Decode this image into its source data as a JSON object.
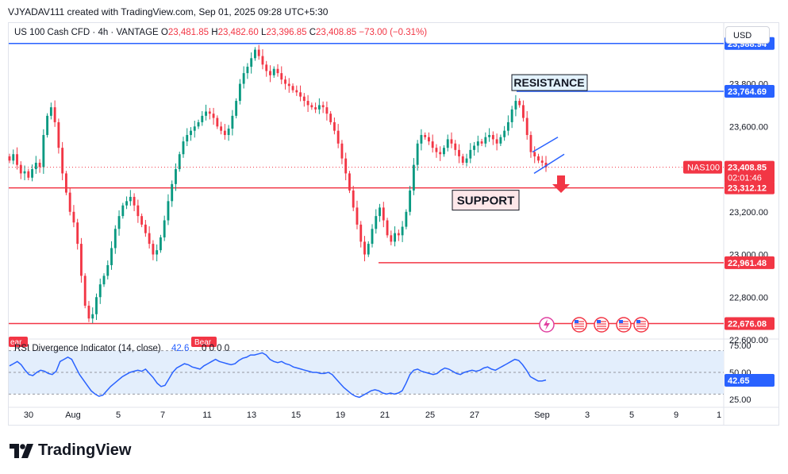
{
  "credit": "VJYADAV111 created with TradingView.com, Sep 01, 2025 09:28 UTC+5:30",
  "legend": {
    "title": "US 100 Cash CFD · 4h · VANTAGE",
    "o_label": "O",
    "o": "23,481.85",
    "h_label": "H",
    "h": "23,482.60",
    "l_label": "L",
    "l": "23,396.85",
    "c_label": "C",
    "c": "23,408.85",
    "change": "−73.00 (−0.31%)"
  },
  "currency": "USD",
  "brand": "TradingView",
  "colors": {
    "up": "#089981",
    "down": "#f23645",
    "blue_line": "#2962ff",
    "rsi": "#2962ff",
    "rsi_band": "#e3eefc"
  },
  "chart_data": [
    {
      "type": "candlestick",
      "ylim": [
        22600,
        24070
      ],
      "y_ticks": [
        23800,
        23600,
        23200,
        23000,
        22800,
        22600
      ],
      "y_tick_labels": [
        "23,800.00",
        "23,600.00",
        "23,200.00",
        "23,000.00",
        "22,800.00",
        "22,600.00"
      ],
      "x_tick_labels": [
        "30",
        "Aug",
        "5",
        "7",
        "11",
        "13",
        "15",
        "19",
        "21",
        "25",
        "27",
        "Sep",
        "3",
        "5",
        "9",
        "1"
      ],
      "current_price": {
        "symbol": "NAS100",
        "value": 23408.85,
        "label": "23,408.85",
        "countdown": "02:01:46"
      },
      "levels": [
        {
          "value": 23988.94,
          "label": "23,988.94",
          "color": "#2962ff"
        },
        {
          "value": 23764.69,
          "label": "23,764.69",
          "color": "#2962ff",
          "annotation": "RESISTANCE"
        },
        {
          "value": 23312.12,
          "label": "23,312.12",
          "color": "#f23645",
          "annotation": "SUPPORT"
        },
        {
          "value": 22961.48,
          "label": "22,961.48",
          "color": "#f23645"
        },
        {
          "value": 22676.08,
          "label": "22,676.08",
          "color": "#f23645"
        }
      ],
      "close_series": [
        23440,
        23470,
        23420,
        23380,
        23390,
        23360,
        23400,
        23430,
        23410,
        23560,
        23650,
        23690,
        23620,
        23500,
        23380,
        23290,
        23200,
        23150,
        23050,
        22900,
        22760,
        22700,
        22720,
        22800,
        22860,
        22900,
        22950,
        23030,
        23120,
        23180,
        23230,
        23250,
        23270,
        23230,
        23180,
        23140,
        23100,
        23050,
        23000,
        23020,
        23080,
        23160,
        23250,
        23330,
        23400,
        23470,
        23530,
        23560,
        23580,
        23600,
        23620,
        23650,
        23670,
        23660,
        23640,
        23600,
        23580,
        23560,
        23590,
        23650,
        23720,
        23800,
        23850,
        23880,
        23920,
        23960,
        23930,
        23890,
        23860,
        23840,
        23870,
        23850,
        23820,
        23800,
        23790,
        23770,
        23760,
        23740,
        23720,
        23700,
        23690,
        23680,
        23700,
        23690,
        23660,
        23620,
        23580,
        23520,
        23450,
        23380,
        23300,
        23220,
        23140,
        23060,
        23000,
        23050,
        23120,
        23180,
        23220,
        23160,
        23090,
        23060,
        23100,
        23090,
        23130,
        23200,
        23300,
        23420,
        23520,
        23560,
        23550,
        23530,
        23500,
        23480,
        23470,
        23500,
        23540,
        23520,
        23490,
        23460,
        23430,
        23450,
        23490,
        23510,
        23530,
        23520,
        23550,
        23560,
        23540,
        23520,
        23550,
        23580,
        23620,
        23680,
        23720,
        23700,
        23640,
        23560,
        23480,
        23460,
        23440,
        23430,
        23409
      ],
      "channel_upper": [
        23480,
        23550
      ],
      "channel_lower": [
        23380,
        23470
      ],
      "icon_row": [
        "lightning-icon",
        "us-flag-icon",
        "us-flag-icon",
        "us-flag-icon",
        "us-flag-icon"
      ]
    },
    {
      "type": "line",
      "title": "RSI Divergence Indicator (14, close)",
      "rsi_value_label": "42.6",
      "zeros": "0 0 0 0",
      "bear_label": "Bear",
      "bear_label_left": "ear",
      "ylim": [
        20,
        80
      ],
      "y_ticks": [
        75,
        50,
        25
      ],
      "y_tick_labels": [
        "75.00",
        "50.00",
        "25.00"
      ],
      "current": {
        "value": 42.65,
        "label": "42.65"
      },
      "band": [
        30,
        70
      ],
      "values": [
        56,
        58,
        60,
        57,
        52,
        48,
        47,
        50,
        52,
        51,
        49,
        48,
        51,
        60,
        62,
        64,
        62,
        55,
        48,
        43,
        38,
        33,
        30,
        28,
        29,
        33,
        37,
        40,
        43,
        46,
        48,
        50,
        51,
        52,
        51,
        53,
        49,
        45,
        40,
        37,
        38,
        44,
        50,
        54,
        56,
        58,
        57,
        55,
        54,
        53,
        56,
        58,
        60,
        62,
        60,
        59,
        58,
        57,
        58,
        61,
        63,
        64,
        66,
        66,
        67,
        68,
        66,
        62,
        60,
        59,
        60,
        58,
        57,
        55,
        54,
        53,
        52,
        51,
        50,
        50,
        49,
        49,
        50,
        48,
        44,
        40,
        36,
        33,
        30,
        28,
        27,
        29,
        31,
        33,
        34,
        33,
        31,
        30,
        31,
        30,
        31,
        33,
        40,
        48,
        52,
        53,
        51,
        50,
        49,
        48,
        49,
        52,
        54,
        53,
        51,
        49,
        48,
        50,
        51,
        52,
        51,
        52,
        54,
        55,
        53,
        52,
        54,
        56,
        58,
        60,
        62,
        61,
        57,
        52,
        46,
        44,
        42,
        42,
        43
      ]
    }
  ]
}
